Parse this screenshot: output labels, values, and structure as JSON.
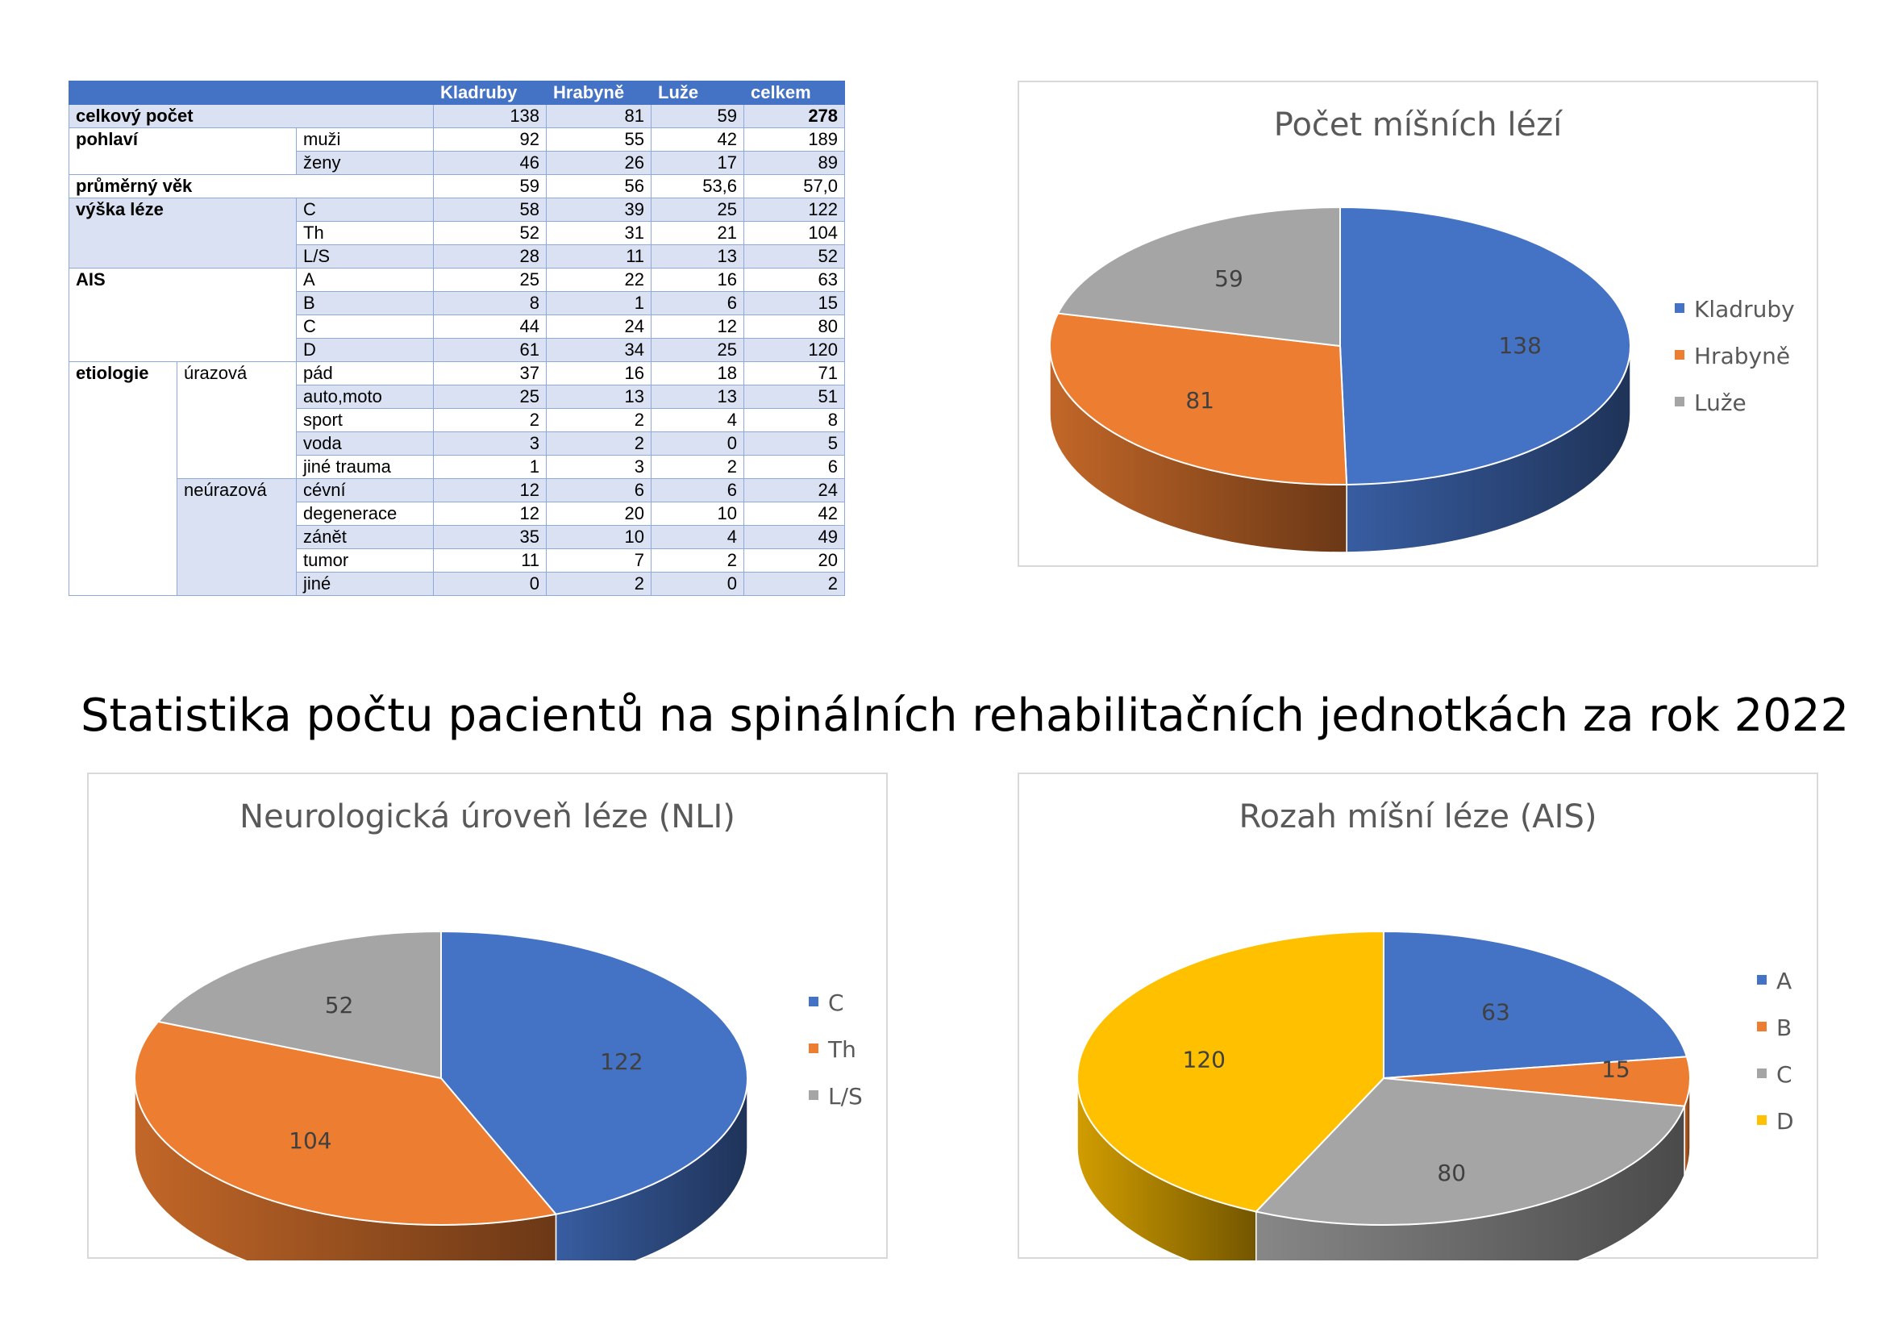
{
  "main_title": "Statistika počtu pacientů na spinálních rehabilitačních jednotkách za rok 2022",
  "table": {
    "headers": [
      "Kladruby",
      "Hrabyně",
      "Luže",
      "celkem"
    ],
    "rows": {
      "total": {
        "label": "celkový počet",
        "values": [
          "138",
          "81",
          "59",
          "278"
        ]
      },
      "sex_label": "pohlaví",
      "men": {
        "label": "muži",
        "values": [
          "92",
          "55",
          "42",
          "189"
        ]
      },
      "women": {
        "label": "ženy",
        "values": [
          "46",
          "26",
          "17",
          "89"
        ]
      },
      "age": {
        "label": "průměrný věk",
        "values": [
          "59",
          "56",
          "53,6",
          "57,0"
        ]
      },
      "level_label": "výška léze",
      "level_c": {
        "label": "C",
        "values": [
          "58",
          "39",
          "25",
          "122"
        ]
      },
      "level_th": {
        "label": "Th",
        "values": [
          "52",
          "31",
          "21",
          "104"
        ]
      },
      "level_ls": {
        "label": "L/S",
        "values": [
          "28",
          "11",
          "13",
          "52"
        ]
      },
      "ais_label": "AIS",
      "ais_a": {
        "label": "A",
        "values": [
          "25",
          "22",
          "16",
          "63"
        ]
      },
      "ais_b": {
        "label": "B",
        "values": [
          "8",
          "1",
          "6",
          "15"
        ]
      },
      "ais_c": {
        "label": "C",
        "values": [
          "44",
          "24",
          "12",
          "80"
        ]
      },
      "ais_d": {
        "label": "D",
        "values": [
          "61",
          "34",
          "25",
          "120"
        ]
      },
      "etiology_label": "etiologie",
      "traumatic_label": "úrazová",
      "fall": {
        "label": "pád",
        "values": [
          "37",
          "16",
          "18",
          "71"
        ]
      },
      "car": {
        "label": "auto,moto",
        "values": [
          "25",
          "13",
          "13",
          "51"
        ]
      },
      "sport": {
        "label": "sport",
        "values": [
          "2",
          "2",
          "4",
          "8"
        ]
      },
      "water": {
        "label": "voda",
        "values": [
          "3",
          "2",
          "0",
          "5"
        ]
      },
      "other_trauma": {
        "label": "jiné trauma",
        "values": [
          "1",
          "3",
          "2",
          "6"
        ]
      },
      "nontraumatic_label": "neúrazová",
      "vascular": {
        "label": "cévní",
        "values": [
          "12",
          "6",
          "6",
          "24"
        ]
      },
      "degeneration": {
        "label": "degenerace",
        "values": [
          "12",
          "20",
          "10",
          "42"
        ]
      },
      "inflammation": {
        "label": "zánět",
        "values": [
          "35",
          "10",
          "4",
          "49"
        ]
      },
      "tumor": {
        "label": "tumor",
        "values": [
          "11",
          "7",
          "2",
          "20"
        ]
      },
      "other": {
        "label": "jiné",
        "values": [
          "0",
          "2",
          "0",
          "2"
        ]
      }
    }
  },
  "chart_data": [
    {
      "type": "pie",
      "title": "Počet míšních lézí",
      "categories": [
        "Kladruby",
        "Hrabyně",
        "Luže"
      ],
      "values": [
        138,
        81,
        59
      ],
      "colors": [
        "#4472c4",
        "#ed7d31",
        "#a5a5a5"
      ],
      "legend": "right"
    },
    {
      "type": "pie",
      "title": "Neurologická úroveň léze (NLI)",
      "categories": [
        "C",
        "Th",
        "L/S"
      ],
      "values": [
        122,
        104,
        52
      ],
      "colors": [
        "#4472c4",
        "#ed7d31",
        "#a5a5a5"
      ],
      "legend": "right"
    },
    {
      "type": "pie",
      "title": "Rozah míšní léze (AIS)",
      "categories": [
        "A",
        "B",
        "C",
        "D"
      ],
      "values": [
        63,
        15,
        80,
        120
      ],
      "colors": [
        "#4472c4",
        "#ed7d31",
        "#a5a5a5",
        "#ffc000"
      ],
      "legend": "right"
    }
  ]
}
